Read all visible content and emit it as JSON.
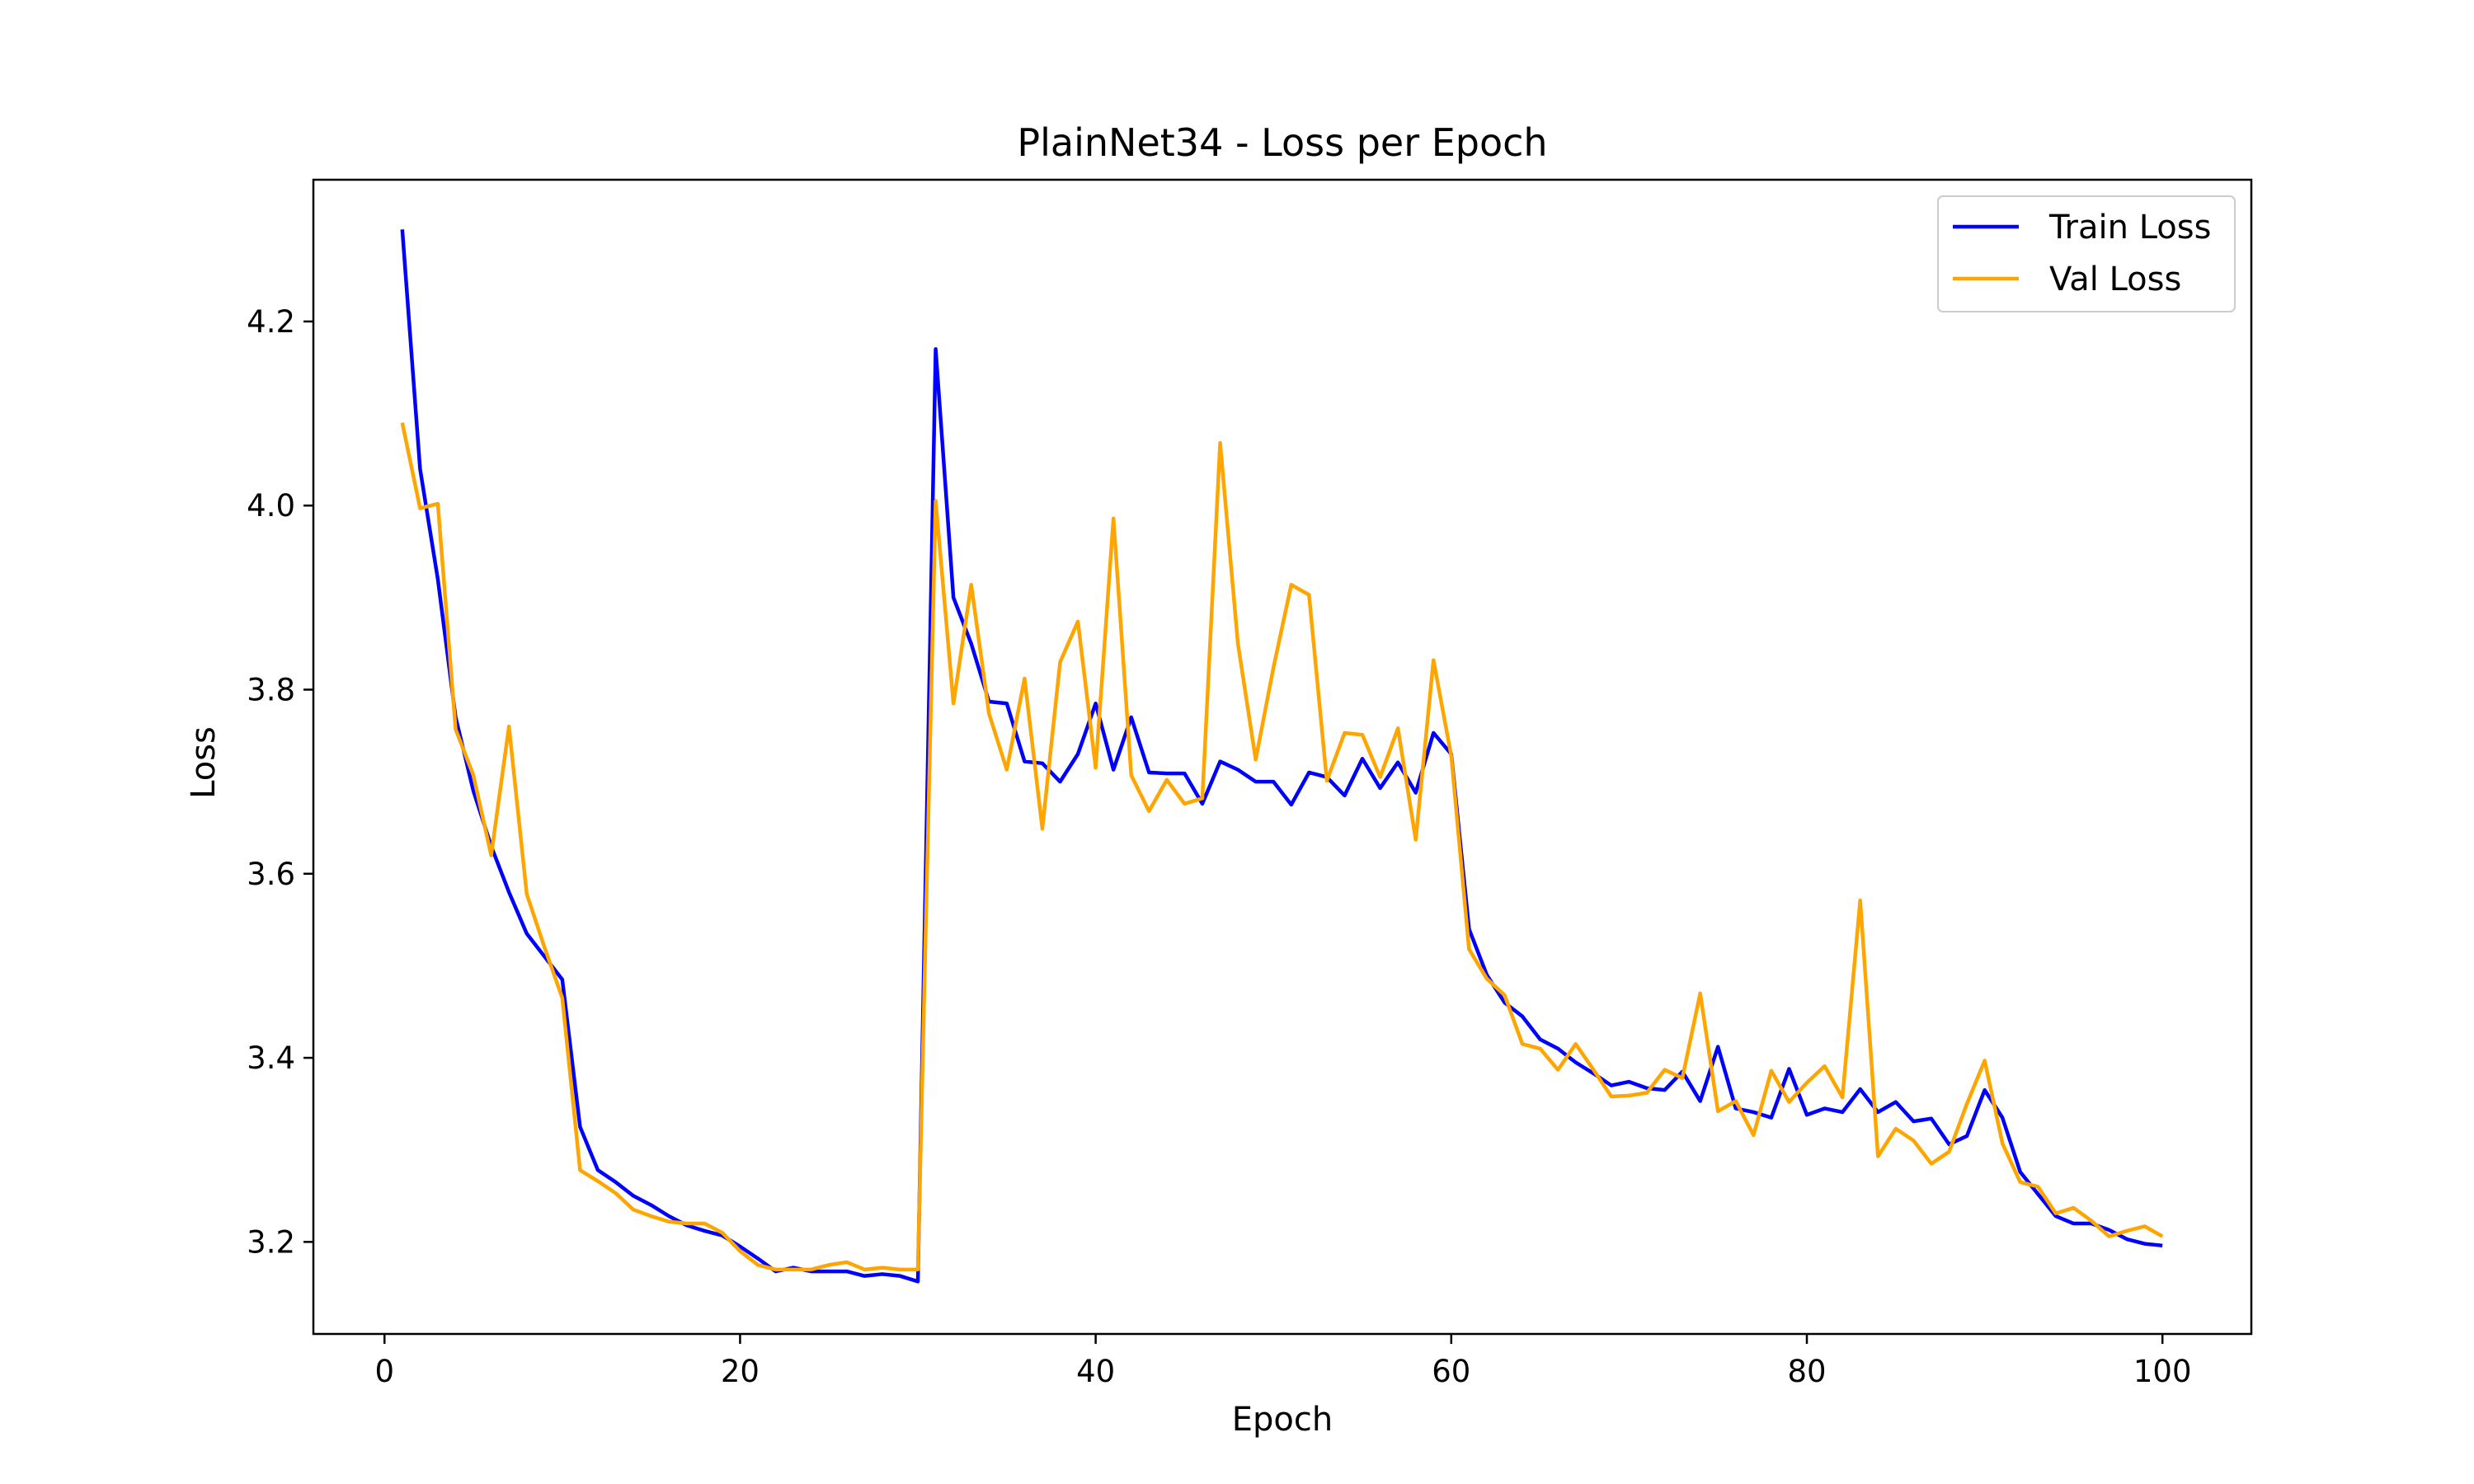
{
  "chart_data": {
    "type": "line",
    "title": "PlainNet34 - Loss per Epoch",
    "xlabel": "Epoch",
    "ylabel": "Loss",
    "xlim": [
      -4,
      105
    ],
    "ylim": [
      3.1,
      4.354
    ],
    "xticks": [
      0,
      20,
      40,
      60,
      80,
      100
    ],
    "yticks": [
      3.2,
      3.4,
      3.6,
      3.8,
      4.0,
      4.2
    ],
    "grid": false,
    "legend_position": "top-right",
    "x": [
      1,
      2,
      3,
      4,
      5,
      6,
      7,
      8,
      9,
      10,
      11,
      12,
      13,
      14,
      15,
      16,
      17,
      18,
      19,
      20,
      21,
      22,
      23,
      24,
      25,
      26,
      27,
      28,
      29,
      30,
      31,
      32,
      33,
      34,
      35,
      36,
      37,
      38,
      39,
      40,
      41,
      42,
      43,
      44,
      45,
      46,
      47,
      48,
      49,
      50,
      51,
      52,
      53,
      54,
      55,
      56,
      57,
      58,
      59,
      60,
      61,
      62,
      63,
      64,
      65,
      66,
      67,
      68,
      69,
      70,
      71,
      72,
      73,
      74,
      75,
      76,
      77,
      78,
      79,
      80,
      81,
      82,
      83,
      84,
      85,
      86,
      87,
      88,
      89,
      90,
      91,
      92,
      93,
      94,
      95,
      96,
      97,
      98,
      99,
      100
    ],
    "series": [
      {
        "name": "Train Loss",
        "color": "#0000ff",
        "values": [
          4.3,
          4.04,
          3.92,
          3.77,
          3.69,
          3.63,
          3.58,
          3.535,
          3.51,
          3.485,
          3.325,
          3.278,
          3.265,
          3.25,
          3.24,
          3.228,
          3.218,
          3.212,
          3.207,
          3.195,
          3.182,
          3.168,
          3.172,
          3.168,
          3.168,
          3.168,
          3.163,
          3.165,
          3.163,
          3.157,
          4.17,
          3.9,
          3.85,
          3.787,
          3.785,
          3.722,
          3.72,
          3.7,
          3.73,
          3.785,
          3.713,
          3.77,
          3.71,
          3.709,
          3.709,
          3.676,
          3.722,
          3.713,
          3.7,
          3.7,
          3.675,
          3.71,
          3.705,
          3.685,
          3.725,
          3.693,
          3.721,
          3.688,
          3.753,
          3.73,
          3.54,
          3.49,
          3.46,
          3.445,
          3.42,
          3.41,
          3.395,
          3.383,
          3.37,
          3.374,
          3.367,
          3.365,
          3.385,
          3.353,
          3.412,
          3.345,
          3.341,
          3.335,
          3.388,
          3.338,
          3.345,
          3.341,
          3.366,
          3.341,
          3.352,
          3.331,
          3.334,
          3.306,
          3.315,
          3.365,
          3.335,
          3.276,
          3.252,
          3.228,
          3.22,
          3.22,
          3.213,
          3.203,
          3.198,
          3.196
        ]
      },
      {
        "name": "Val Loss",
        "color": "#ffa500",
        "values": [
          4.09,
          3.997,
          4.002,
          3.757,
          3.707,
          3.62,
          3.76,
          3.578,
          3.52,
          3.465,
          3.278,
          3.266,
          3.253,
          3.235,
          3.228,
          3.222,
          3.22,
          3.22,
          3.21,
          3.19,
          3.175,
          3.17,
          3.17,
          3.17,
          3.175,
          3.178,
          3.17,
          3.172,
          3.17,
          3.17,
          4.005,
          3.785,
          3.914,
          3.774,
          3.713,
          3.812,
          3.649,
          3.83,
          3.874,
          3.715,
          3.986,
          3.707,
          3.668,
          3.702,
          3.676,
          3.682,
          4.068,
          3.85,
          3.724,
          3.824,
          3.914,
          3.903,
          3.701,
          3.753,
          3.751,
          3.705,
          3.758,
          3.637,
          3.832,
          3.728,
          3.518,
          3.486,
          3.468,
          3.415,
          3.41,
          3.387,
          3.415,
          3.387,
          3.358,
          3.359,
          3.362,
          3.387,
          3.378,
          3.47,
          3.342,
          3.353,
          3.316,
          3.386,
          3.352,
          3.373,
          3.391,
          3.357,
          3.571,
          3.293,
          3.323,
          3.31,
          3.285,
          3.298,
          3.35,
          3.397,
          3.307,
          3.265,
          3.26,
          3.231,
          3.237,
          3.223,
          3.206,
          3.212,
          3.217,
          3.206
        ]
      }
    ]
  }
}
